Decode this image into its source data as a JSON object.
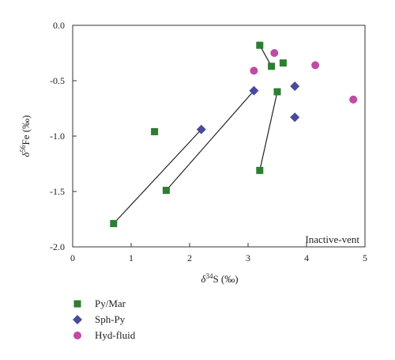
{
  "chart_data": {
    "type": "scatter",
    "xlabel": "δ34S (‰)",
    "ylabel": "δ56Fe (‰)",
    "xlim": [
      0,
      5
    ],
    "ylim": [
      -2.0,
      0.0
    ],
    "xticks": [
      "0",
      "1",
      "2",
      "3",
      "4",
      "5"
    ],
    "yticks": [
      "0.0",
      "-0.5",
      "-1.0",
      "-1.5",
      "-2.0"
    ],
    "grid": false,
    "annotation": "Inactive-vent",
    "legend_position": "bottom-left",
    "series": [
      {
        "name": "Py/Mar",
        "marker": "square",
        "color": "#2e7d32",
        "points": [
          {
            "x": 0.7,
            "y": -1.79
          },
          {
            "x": 1.6,
            "y": -1.49
          },
          {
            "x": 1.4,
            "y": -0.96
          },
          {
            "x": 3.2,
            "y": -0.18
          },
          {
            "x": 3.4,
            "y": -0.37
          },
          {
            "x": 3.6,
            "y": -0.34
          },
          {
            "x": 3.5,
            "y": -0.6
          },
          {
            "x": 3.2,
            "y": -1.31
          }
        ]
      },
      {
        "name": "Sph-Py",
        "marker": "diamond",
        "color": "#4a4a9c",
        "points": [
          {
            "x": 2.2,
            "y": -0.94
          },
          {
            "x": 3.1,
            "y": -0.59
          },
          {
            "x": 3.8,
            "y": -0.55
          },
          {
            "x": 3.8,
            "y": -0.83
          }
        ]
      },
      {
        "name": "Hyd-fluid",
        "marker": "circle",
        "color": "#c04aa6",
        "points": [
          {
            "x": 3.45,
            "y": -0.25
          },
          {
            "x": 3.1,
            "y": -0.41
          },
          {
            "x": 4.15,
            "y": -0.36
          },
          {
            "x": 4.8,
            "y": -0.67
          }
        ]
      }
    ],
    "tie_lines": [
      {
        "from": {
          "x": 0.7,
          "y": -1.79
        },
        "to": {
          "x": 2.2,
          "y": -0.94
        }
      },
      {
        "from": {
          "x": 1.6,
          "y": -1.49
        },
        "to": {
          "x": 3.1,
          "y": -0.59
        }
      },
      {
        "from": {
          "x": 3.2,
          "y": -1.31
        },
        "to": {
          "x": 3.5,
          "y": -0.6
        }
      },
      {
        "from": {
          "x": 3.2,
          "y": -0.18
        },
        "to": {
          "x": 3.4,
          "y": -0.37
        }
      }
    ]
  }
}
